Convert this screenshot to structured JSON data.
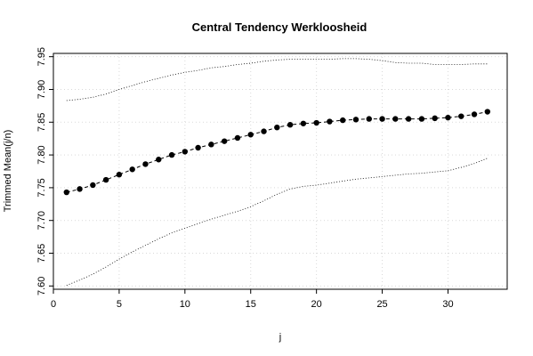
{
  "chart_data": {
    "type": "line",
    "title": "Central Tendency Werkloosheid",
    "xlabel": "j",
    "ylabel": "Trimmed Mean(j/n)",
    "xlim": [
      0,
      34.5
    ],
    "ylim": [
      7.595,
      7.955
    ],
    "x_ticks": [
      0,
      5,
      10,
      15,
      20,
      25,
      30
    ],
    "y_ticks": [
      7.6,
      7.65,
      7.7,
      7.75,
      7.8,
      7.85,
      7.9,
      7.95
    ],
    "y_tick_labels": [
      "7.60",
      "7.65",
      "7.70",
      "7.75",
      "7.80",
      "7.85",
      "7.90",
      "7.95"
    ],
    "grid": true,
    "x": [
      1,
      2,
      3,
      4,
      5,
      6,
      7,
      8,
      9,
      10,
      11,
      12,
      13,
      14,
      15,
      16,
      17,
      18,
      19,
      20,
      21,
      22,
      23,
      24,
      25,
      26,
      27,
      28,
      29,
      30,
      31,
      32,
      33
    ],
    "series": [
      {
        "style": "points-dashed",
        "values": [
          7.743,
          7.748,
          7.754,
          7.762,
          7.77,
          7.778,
          7.786,
          7.793,
          7.8,
          7.805,
          7.811,
          7.816,
          7.821,
          7.826,
          7.831,
          7.836,
          7.842,
          7.846,
          7.848,
          7.849,
          7.851,
          7.853,
          7.854,
          7.855,
          7.855,
          7.855,
          7.855,
          7.855,
          7.856,
          7.857,
          7.859,
          7.862,
          7.866
        ]
      },
      {
        "style": "dotted-upper",
        "values": [
          7.883,
          7.885,
          7.888,
          7.893,
          7.9,
          7.906,
          7.912,
          7.917,
          7.922,
          7.926,
          7.929,
          7.933,
          7.935,
          7.938,
          7.94,
          7.943,
          7.945,
          7.946,
          7.946,
          7.946,
          7.946,
          7.947,
          7.947,
          7.946,
          7.944,
          7.941,
          7.94,
          7.94,
          7.938,
          7.938,
          7.938,
          7.939,
          7.939
        ]
      },
      {
        "style": "dotted-lower",
        "values": [
          7.601,
          7.609,
          7.618,
          7.629,
          7.641,
          7.652,
          7.662,
          7.672,
          7.681,
          7.688,
          7.695,
          7.702,
          7.708,
          7.714,
          7.721,
          7.73,
          7.74,
          7.748,
          7.752,
          7.754,
          7.757,
          7.76,
          7.763,
          7.765,
          7.767,
          7.769,
          7.771,
          7.772,
          7.774,
          7.776,
          7.781,
          7.787,
          7.795
        ]
      }
    ]
  }
}
